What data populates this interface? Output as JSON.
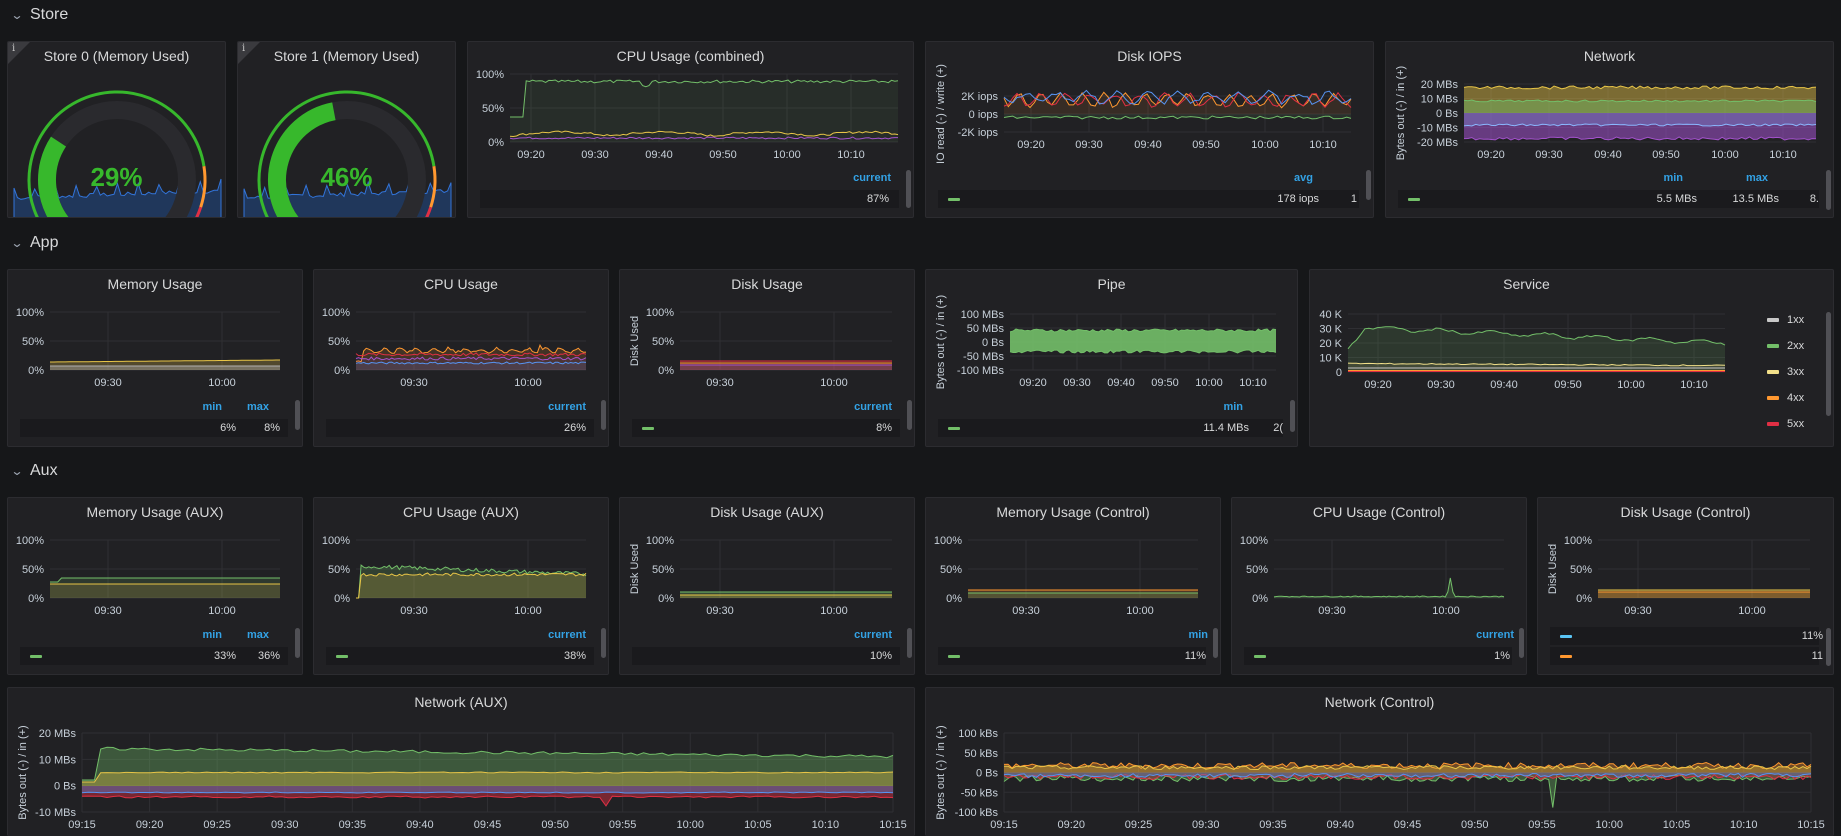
{
  "rows": {
    "store": "Store",
    "app": "App",
    "aux": "Aux"
  },
  "colors": {
    "green": "#73bf69",
    "gauge_green": "#37b82c",
    "yellow": "#e8c547",
    "orange": "#ff9830",
    "red": "#e02f44",
    "purple": "#a352cc",
    "blue": "#5794f2",
    "white": "#c8c8c8",
    "accent": "#33a2e5"
  },
  "store": {
    "gauge0": {
      "title": "Store 0 (Memory Used)",
      "value_text": "29%",
      "value": 0.29
    },
    "gauge1": {
      "title": "Store 1 (Memory Used)",
      "value_text": "46%",
      "value": 0.46
    },
    "cpu_combined": {
      "title": "CPU Usage (combined)",
      "y_ticks": [
        "100%",
        "50%",
        "0%"
      ],
      "x_ticks": [
        "09:20",
        "09:30",
        "09:40",
        "09:50",
        "10:00",
        "10:10"
      ],
      "legend_header": "current",
      "legend_value": "87%"
    },
    "disk_iops": {
      "title": "Disk IOPS",
      "ylabel": "IO read (-) / write (+)",
      "y_ticks": [
        "2K iops",
        "0 iops",
        "-2K iops"
      ],
      "x_ticks": [
        "09:20",
        "09:30",
        "09:40",
        "09:50",
        "10:00",
        "10:10"
      ],
      "legend_header": "avg",
      "legend_value": "178 iops",
      "legend_value2": "1"
    },
    "network": {
      "title": "Network",
      "ylabel": "Bytes out (-) / in (+)",
      "y_ticks": [
        "20 MBs",
        "10 MBs",
        "0 Bs",
        "-10 MBs",
        "-20 MBs"
      ],
      "x_ticks": [
        "09:20",
        "09:30",
        "09:40",
        "09:50",
        "10:00",
        "10:10"
      ],
      "legend_headers": [
        "min",
        "max"
      ],
      "legend_values": [
        "5.5 MBs",
        "13.5 MBs",
        "8."
      ]
    }
  },
  "app": {
    "memory": {
      "title": "Memory Usage",
      "y_ticks": [
        "100%",
        "50%",
        "0%"
      ],
      "x_ticks": [
        "09:30",
        "10:00"
      ],
      "legend_headers": [
        "min",
        "max"
      ],
      "legend_values": [
        "6%",
        "8%"
      ]
    },
    "cpu": {
      "title": "CPU Usage",
      "y_ticks": [
        "100%",
        "50%",
        "0%"
      ],
      "x_ticks": [
        "09:30",
        "10:00"
      ],
      "legend_header": "current",
      "legend_value": "26%"
    },
    "disk": {
      "title": "Disk Usage",
      "ylabel": "Disk Used",
      "y_ticks": [
        "100%",
        "50%",
        "0%"
      ],
      "x_ticks": [
        "09:30",
        "10:00"
      ],
      "legend_header": "current",
      "legend_value": "8%"
    },
    "pipe": {
      "title": "Pipe",
      "ylabel": "Bytes out (-) / in (+)",
      "y_ticks": [
        "100 MBs",
        "50 MBs",
        "0 Bs",
        "-50 MBs",
        "-100 MBs"
      ],
      "x_ticks": [
        "09:20",
        "09:30",
        "09:40",
        "09:50",
        "10:00",
        "10:10"
      ],
      "legend_header": "min",
      "legend_value": "11.4 MBs",
      "legend_value2": "2("
    },
    "service": {
      "title": "Service",
      "y_ticks": [
        "40 K",
        "30 K",
        "20 K",
        "10 K",
        "0"
      ],
      "x_ticks": [
        "09:20",
        "09:30",
        "09:40",
        "09:50",
        "10:00",
        "10:10"
      ],
      "legend": [
        {
          "label": "1xx",
          "color": "#c8c8c8"
        },
        {
          "label": "2xx",
          "color": "#73bf69"
        },
        {
          "label": "3xx",
          "color": "#f2e08a"
        },
        {
          "label": "4xx",
          "color": "#ff9830"
        },
        {
          "label": "5xx",
          "color": "#e02f44"
        }
      ]
    }
  },
  "aux": {
    "memory_aux": {
      "title": "Memory Usage (AUX)",
      "y_ticks": [
        "100%",
        "50%",
        "0%"
      ],
      "x_ticks": [
        "09:30",
        "10:00"
      ],
      "legend_headers": [
        "min",
        "max"
      ],
      "legend_values": [
        "33%",
        "36%"
      ]
    },
    "cpu_aux": {
      "title": "CPU Usage (AUX)",
      "y_ticks": [
        "100%",
        "50%",
        "0%"
      ],
      "x_ticks": [
        "09:30",
        "10:00"
      ],
      "legend_header": "current",
      "legend_value": "38%"
    },
    "disk_aux": {
      "title": "Disk Usage (AUX)",
      "ylabel": "Disk Used",
      "y_ticks": [
        "100%",
        "50%",
        "0%"
      ],
      "x_ticks": [
        "09:30",
        "10:00"
      ],
      "legend_header": "current",
      "legend_value": "10%"
    },
    "memory_control": {
      "title": "Memory Usage (Control)",
      "y_ticks": [
        "100%",
        "50%",
        "0%"
      ],
      "x_ticks": [
        "09:30",
        "10:00"
      ],
      "legend_header": "min",
      "legend_value": "11%"
    },
    "cpu_control": {
      "title": "CPU Usage (Control)",
      "y_ticks": [
        "100%",
        "50%",
        "0%"
      ],
      "x_ticks": [
        "09:30",
        "10:00"
      ],
      "legend_header": "current",
      "legend_value": "1%"
    },
    "disk_control": {
      "title": "Disk Usage (Control)",
      "ylabel": "Disk Used",
      "y_ticks": [
        "100%",
        "50%",
        "0%"
      ],
      "x_ticks": [
        "09:30",
        "10:00"
      ],
      "legend_values": [
        "11%",
        "11"
      ]
    },
    "network_aux": {
      "title": "Network (AUX)",
      "ylabel": "Bytes out (-) / in (+)",
      "y_ticks": [
        "20 MBs",
        "10 MBs",
        "0 Bs",
        "-10 MBs"
      ],
      "x_ticks": [
        "09:15",
        "09:20",
        "09:25",
        "09:30",
        "09:35",
        "09:40",
        "09:45",
        "09:50",
        "09:55",
        "10:00",
        "10:05",
        "10:10",
        "10:15"
      ]
    },
    "network_control": {
      "title": "Network (Control)",
      "ylabel": "Bytes out (-) / in (+)",
      "y_ticks": [
        "100 kBs",
        "50 kBs",
        "0 Bs",
        "-50 kBs",
        "-100 kBs"
      ],
      "x_ticks": [
        "09:15",
        "09:20",
        "09:25",
        "09:30",
        "09:35",
        "09:40",
        "09:45",
        "09:50",
        "09:55",
        "10:00",
        "10:05",
        "10:10",
        "10:15"
      ]
    }
  }
}
